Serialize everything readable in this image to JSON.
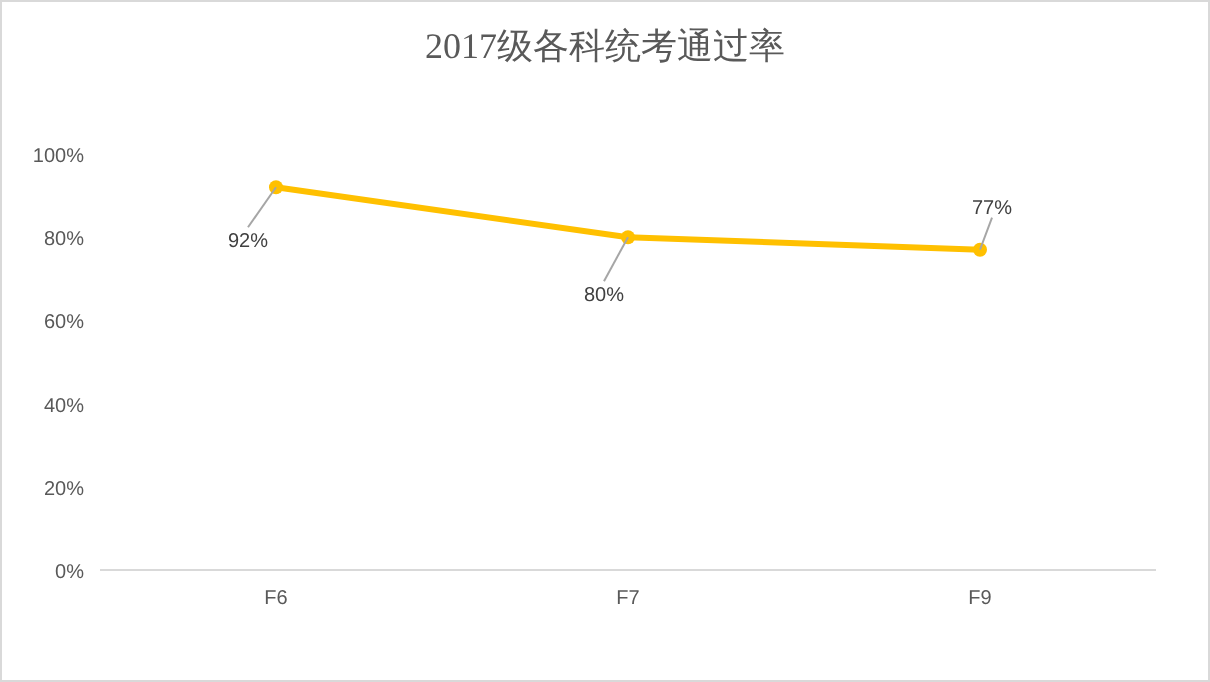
{
  "chart_data": {
    "type": "line",
    "title": "2017级各科统考通过率",
    "categories": [
      "F6",
      "F7",
      "F9"
    ],
    "series": [
      {
        "color": "#ffc000",
        "values": [
          92,
          80,
          77
        ]
      }
    ],
    "value_labels": [
      "92%",
      "80%",
      "77%"
    ],
    "ylim": [
      0,
      100
    ],
    "yticks": [
      {
        "value": 0,
        "label": "0%"
      },
      {
        "value": 20,
        "label": "20%"
      },
      {
        "value": 40,
        "label": "40%"
      },
      {
        "value": 60,
        "label": "60%"
      },
      {
        "value": 80,
        "label": "80%"
      },
      {
        "value": 100,
        "label": "100%"
      }
    ],
    "marker": "circle",
    "line_style": "solid"
  }
}
